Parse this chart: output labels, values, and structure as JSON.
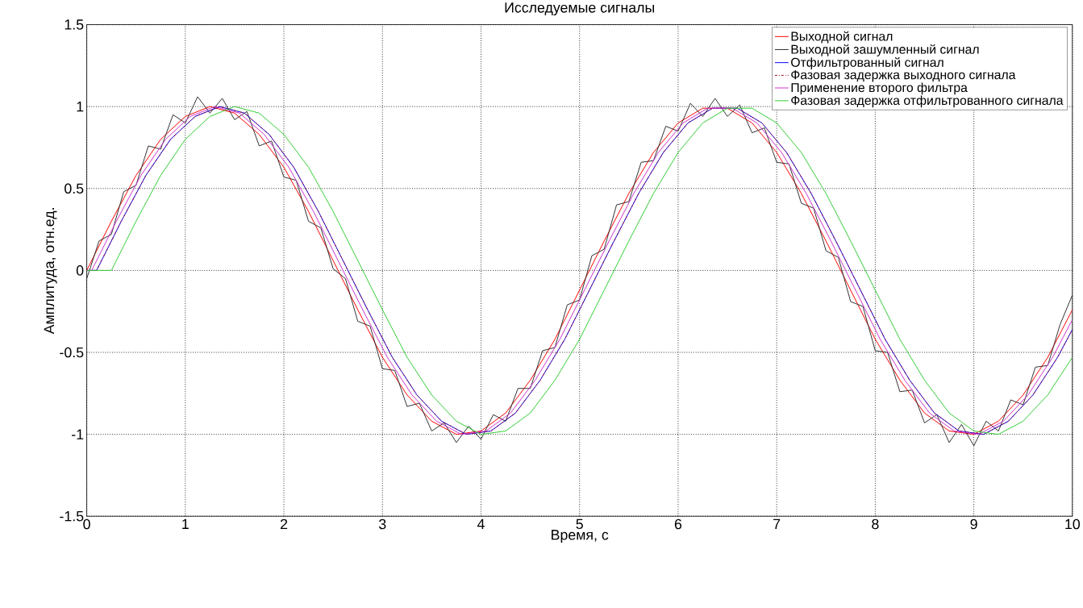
{
  "chart_data": {
    "type": "line",
    "title": "Исследуемые сигналы",
    "xlabel": "Время, с",
    "ylabel": "Амплитуда, отн.ед.",
    "xlim": [
      0,
      10
    ],
    "ylim": [
      -1.5,
      1.5
    ],
    "xticks": [
      0,
      1,
      2,
      3,
      4,
      5,
      6,
      7,
      8,
      9,
      10
    ],
    "yticks": [
      -1.5,
      -1,
      -0.5,
      0,
      0.5,
      1,
      1.5
    ],
    "grid": true,
    "legend": "top right",
    "marker": "none",
    "series": [
      {
        "name": "Выходной сигнал",
        "color": "#ff0000",
        "line_style": "solid",
        "x": [
          0,
          0.25,
          0.5,
          0.75,
          1,
          1.25,
          1.5,
          1.75,
          2,
          2.25,
          2.5,
          2.75,
          3,
          3.25,
          3.5,
          3.75,
          4,
          4.25,
          4.5,
          4.75,
          5,
          5.25,
          5.5,
          5.75,
          6,
          6.25,
          6.5,
          6.75,
          7,
          7.25,
          7.5,
          7.75,
          8,
          8.25,
          8.5,
          8.75,
          9,
          9.25,
          9.5,
          9.75,
          10
        ],
        "values": [
          0,
          0.3,
          0.58,
          0.8,
          0.94,
          1.0,
          0.96,
          0.83,
          0.63,
          0.36,
          0.06,
          -0.24,
          -0.53,
          -0.76,
          -0.92,
          -1.0,
          -0.98,
          -0.87,
          -0.67,
          -0.42,
          -0.12,
          0.18,
          0.47,
          0.72,
          0.9,
          0.99,
          0.99,
          0.9,
          0.72,
          0.47,
          0.18,
          -0.12,
          -0.42,
          -0.67,
          -0.87,
          -0.98,
          -1.0,
          -0.92,
          -0.76,
          -0.53,
          -0.24
        ]
      },
      {
        "name": "Выходной зашумленный сигнал",
        "color": "#303030",
        "line_style": "solid",
        "x": [
          0,
          0.125,
          0.25,
          0.375,
          0.5,
          0.625,
          0.75,
          0.875,
          1,
          1.125,
          1.25,
          1.375,
          1.5,
          1.625,
          1.75,
          1.875,
          2,
          2.125,
          2.25,
          2.375,
          2.5,
          2.625,
          2.75,
          2.875,
          3,
          3.125,
          3.25,
          3.375,
          3.5,
          3.625,
          3.75,
          3.875,
          4,
          4.125,
          4.25,
          4.375,
          4.5,
          4.625,
          4.75,
          4.875,
          5,
          5.125,
          5.25,
          5.375,
          5.5,
          5.625,
          5.75,
          5.875,
          6,
          6.125,
          6.25,
          6.375,
          6.5,
          6.625,
          6.75,
          6.875,
          7,
          7.125,
          7.25,
          7.375,
          7.5,
          7.625,
          7.75,
          7.875,
          8,
          8.125,
          8.25,
          8.375,
          8.5,
          8.625,
          8.75,
          8.875,
          9,
          9.125,
          9.25,
          9.375,
          9.5,
          9.625,
          9.75,
          9.875,
          10
        ],
        "values": [
          -0.05,
          0.18,
          0.22,
          0.48,
          0.52,
          0.76,
          0.74,
          0.95,
          0.9,
          1.06,
          0.96,
          1.05,
          0.92,
          0.97,
          0.76,
          0.79,
          0.57,
          0.55,
          0.3,
          0.26,
          0.01,
          -0.05,
          -0.31,
          -0.34,
          -0.6,
          -0.61,
          -0.83,
          -0.81,
          -0.98,
          -0.93,
          -1.05,
          -0.95,
          -1.03,
          -0.88,
          -0.92,
          -0.72,
          -0.72,
          -0.49,
          -0.47,
          -0.21,
          -0.18,
          0.09,
          0.13,
          0.4,
          0.42,
          0.66,
          0.67,
          0.88,
          0.85,
          1.02,
          0.94,
          1.05,
          0.94,
          1.01,
          0.84,
          0.87,
          0.66,
          0.65,
          0.41,
          0.38,
          0.12,
          0.08,
          -0.19,
          -0.22,
          -0.49,
          -0.5,
          -0.74,
          -0.73,
          -0.93,
          -0.88,
          -1.05,
          -0.94,
          -1.07,
          -0.92,
          -0.98,
          -0.79,
          -0.82,
          -0.59,
          -0.58,
          -0.33,
          -0.15
        ]
      },
      {
        "name": "Отфильтрованный сигнал",
        "color": "#0000ff",
        "line_style": "solid",
        "x": [
          0,
          0.1,
          0.35,
          0.6,
          0.85,
          1.1,
          1.35,
          1.6,
          1.85,
          2.1,
          2.35,
          2.6,
          2.85,
          3.1,
          3.35,
          3.6,
          3.85,
          4.1,
          4.35,
          4.6,
          4.85,
          5.1,
          5.35,
          5.6,
          5.85,
          6.1,
          6.35,
          6.6,
          6.85,
          7.1,
          7.35,
          7.6,
          7.85,
          8.1,
          8.35,
          8.6,
          8.85,
          9.1,
          9.35,
          9.6,
          9.85,
          10
        ],
        "values": [
          0,
          0,
          0.3,
          0.58,
          0.8,
          0.94,
          1.0,
          0.96,
          0.83,
          0.63,
          0.36,
          0.06,
          -0.24,
          -0.53,
          -0.76,
          -0.92,
          -1.0,
          -0.98,
          -0.87,
          -0.67,
          -0.42,
          -0.12,
          0.18,
          0.47,
          0.72,
          0.9,
          0.99,
          0.99,
          0.9,
          0.72,
          0.47,
          0.18,
          -0.12,
          -0.42,
          -0.67,
          -0.87,
          -0.98,
          -1.0,
          -0.92,
          -0.76,
          -0.53,
          -0.36
        ]
      },
      {
        "name": "Фазовая задержка выходного сигнала",
        "color": "#a0102a",
        "line_style": "dashdot",
        "x": [
          0,
          0.1,
          0.35,
          0.6,
          0.85,
          1.1,
          1.35,
          1.6,
          1.85,
          2.1,
          2.35,
          2.6,
          2.85,
          3.1,
          3.35,
          3.6,
          3.85,
          4.1,
          4.35,
          4.6,
          4.85,
          5.1,
          5.35,
          5.6,
          5.85,
          6.1,
          6.35,
          6.6,
          6.85,
          7.1,
          7.35,
          7.6,
          7.85,
          8.1,
          8.35,
          8.6,
          8.85,
          9.1,
          9.35,
          9.6,
          9.85,
          10
        ],
        "values": [
          0,
          0,
          0.3,
          0.58,
          0.8,
          0.94,
          1.0,
          0.96,
          0.83,
          0.63,
          0.36,
          0.06,
          -0.24,
          -0.53,
          -0.76,
          -0.92,
          -1.0,
          -0.98,
          -0.87,
          -0.67,
          -0.42,
          -0.12,
          0.18,
          0.47,
          0.72,
          0.9,
          0.99,
          0.99,
          0.9,
          0.72,
          0.47,
          0.18,
          -0.12,
          -0.42,
          -0.67,
          -0.87,
          -0.98,
          -1.0,
          -0.92,
          -0.76,
          -0.53,
          -0.36
        ]
      },
      {
        "name": "Применение второго фильтра",
        "color": "#cc33cc",
        "line_style": "solid",
        "x": [
          0,
          0.05,
          0.3,
          0.55,
          0.8,
          1.05,
          1.3,
          1.55,
          1.8,
          2.05,
          2.3,
          2.55,
          2.8,
          3.05,
          3.3,
          3.55,
          3.8,
          4.05,
          4.3,
          4.55,
          4.8,
          5.05,
          5.3,
          5.55,
          5.8,
          6.05,
          6.3,
          6.55,
          6.8,
          7.05,
          7.3,
          7.55,
          7.8,
          8.05,
          8.3,
          8.55,
          8.8,
          9.05,
          9.3,
          9.55,
          9.8,
          10
        ],
        "values": [
          0,
          0,
          0.3,
          0.58,
          0.8,
          0.94,
          1.0,
          0.96,
          0.83,
          0.63,
          0.36,
          0.06,
          -0.24,
          -0.53,
          -0.76,
          -0.92,
          -1.0,
          -0.98,
          -0.87,
          -0.67,
          -0.42,
          -0.12,
          0.18,
          0.47,
          0.72,
          0.9,
          0.99,
          0.99,
          0.9,
          0.72,
          0.47,
          0.18,
          -0.12,
          -0.42,
          -0.67,
          -0.87,
          -0.98,
          -1.0,
          -0.92,
          -0.76,
          -0.53,
          -0.3
        ]
      },
      {
        "name": "Фазовая задержка отфильтрованного сигнала",
        "color": "#33cc33",
        "line_style": "solid",
        "x": [
          0,
          0.25,
          0.5,
          0.75,
          1,
          1.25,
          1.5,
          1.75,
          2,
          2.25,
          2.5,
          2.75,
          3,
          3.25,
          3.5,
          3.75,
          4,
          4.25,
          4.5,
          4.75,
          5,
          5.25,
          5.5,
          5.75,
          6,
          6.25,
          6.5,
          6.75,
          7,
          7.25,
          7.5,
          7.75,
          8,
          8.25,
          8.5,
          8.75,
          9,
          9.25,
          9.5,
          9.75,
          10
        ],
        "values": [
          0,
          0,
          0.3,
          0.58,
          0.8,
          0.94,
          1.0,
          0.96,
          0.83,
          0.63,
          0.36,
          0.06,
          -0.24,
          -0.53,
          -0.76,
          -0.92,
          -1.0,
          -0.98,
          -0.87,
          -0.67,
          -0.42,
          -0.12,
          0.18,
          0.47,
          0.72,
          0.9,
          0.99,
          0.99,
          0.9,
          0.72,
          0.47,
          0.18,
          -0.12,
          -0.42,
          -0.67,
          -0.87,
          -0.98,
          -1.0,
          -0.92,
          -0.76,
          -0.53
        ]
      }
    ]
  }
}
